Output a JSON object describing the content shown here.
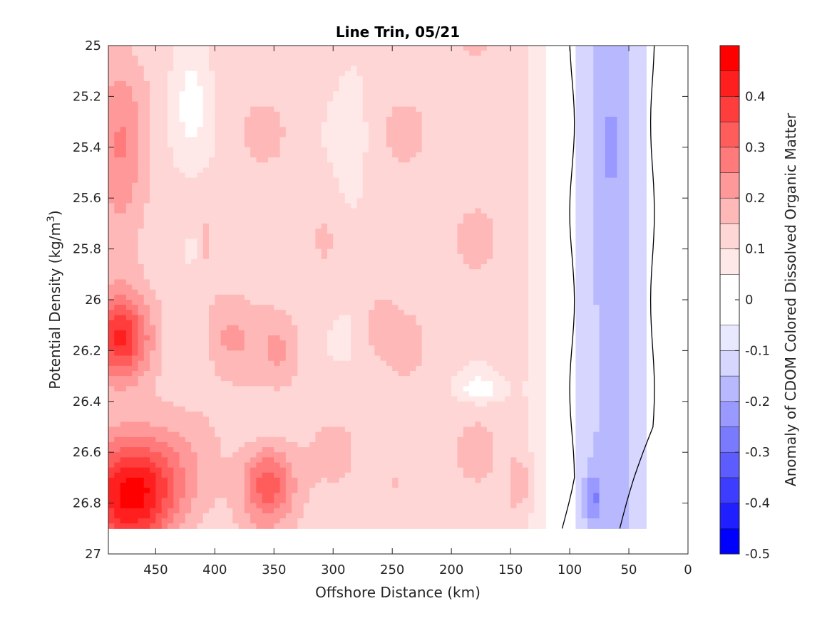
{
  "chart_data": {
    "type": "contour",
    "title": "Line Trin, 05/21",
    "xlabel": "Offshore Distance (km)",
    "ylabel": "Potential Density (kg/m",
    "ylabel_sup": "3",
    "ylabel_close": ")",
    "colorbar_label": "Anomaly of CDOM Colored Dissolved Organic Matter",
    "xlim": [
      490,
      0
    ],
    "ylim": [
      25,
      27
    ],
    "x_reversed": true,
    "y_reversed": true,
    "x_ticks": [
      450,
      400,
      350,
      300,
      250,
      200,
      150,
      100,
      50,
      0
    ],
    "x_tick_labels": [
      "450",
      "400",
      "350",
      "300",
      "250",
      "200",
      "150",
      "100",
      "50",
      "0"
    ],
    "y_ticks": [
      25,
      25.2,
      25.4,
      25.6,
      25.8,
      26,
      26.2,
      26.4,
      26.6,
      26.8,
      27
    ],
    "y_tick_labels": [
      "25",
      "25.2",
      "25.4",
      "25.6",
      "25.8",
      "26",
      "26.2",
      "26.4",
      "26.6",
      "26.8",
      "27"
    ],
    "data_ymax": 26.9,
    "colorbar": {
      "range": [
        -0.5,
        0.5
      ],
      "ticks": [
        0.4,
        0.3,
        0.2,
        0.1,
        0,
        -0.1,
        -0.2,
        -0.3,
        -0.4,
        -0.5
      ],
      "tick_labels": [
        "0.4",
        "0.3",
        "0.2",
        "0.1",
        "0",
        "-0.1",
        "-0.2",
        "-0.3",
        "-0.4",
        "-0.5"
      ],
      "levels": [
        -0.5,
        -0.45,
        -0.4,
        -0.35,
        -0.3,
        -0.25,
        -0.2,
        -0.15,
        -0.1,
        -0.05,
        0.05,
        0.1,
        0.15,
        0.2,
        0.25,
        0.3,
        0.35,
        0.4,
        0.45,
        0.5
      ],
      "colors": [
        "#0000ff",
        "#1f1fff",
        "#3d3dff",
        "#5c5cff",
        "#7a7aff",
        "#9999ff",
        "#b8b8ff",
        "#d6d6ff",
        "#e8e8ff",
        "#ffffff",
        "#ffe8e8",
        "#ffd6d6",
        "#ffb8b8",
        "#ff9999",
        "#ff7a7a",
        "#ff5c5c",
        "#ff3d3d",
        "#ff1f1f",
        "#ff0000"
      ]
    },
    "zero_contour_x": [
      98,
      30
    ],
    "grid": false
  }
}
